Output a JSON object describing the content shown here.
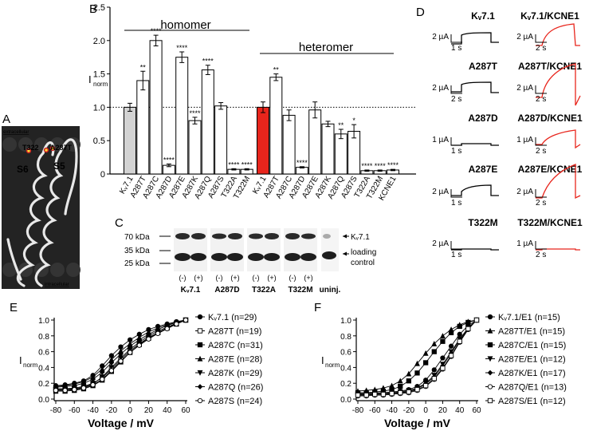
{
  "panel_letters": {
    "a": "A",
    "b": "B",
    "c": "C",
    "d": "D",
    "e": "E",
    "f": "F"
  },
  "colors": {
    "red": "#e8251c",
    "gray": "#999999",
    "light_gray": "#d3d3d3"
  },
  "panel_a": {
    "top_label": "extracellular",
    "bottom_label": "intracellular",
    "mutants": [
      "T322",
      "A287T"
    ],
    "segments": [
      "S6",
      "S5"
    ]
  },
  "panel_c": {
    "mw": [
      "70 kDa",
      "35 kDa",
      "25 kDa"
    ],
    "right_labels": {
      "kv": "Kᵥ7.1",
      "loading1": "loading",
      "loading2": "control"
    },
    "lane_signs": [
      "(-)",
      "(+)",
      "(-)",
      "(+)",
      "(-)",
      "(+)",
      "(-)",
      "(+)"
    ],
    "groups": [
      "Kᵥ7.1",
      "A287D",
      "T322A",
      "T322M",
      "uninj."
    ]
  },
  "panel_d": {
    "left_titles": [
      "Kᵥ7.1",
      "A287T",
      "A287D",
      "A287E",
      "T322M"
    ],
    "right_titles": [
      "Kᵥ7.1/KCNE1",
      "A287T/KCNE1",
      "A287D/KCNE1",
      "A287E/KCNE1",
      "T322M/KCNE1"
    ],
    "left_scales": [
      {
        "i": "2 µA",
        "t": "1 s"
      },
      {
        "i": "2 µA",
        "t": "2 s"
      },
      {
        "i": "1 µA",
        "t": "1 s"
      },
      {
        "i": "2 µA",
        "t": "1 s"
      },
      {
        "i": "2 µA",
        "t": "1 s"
      }
    ],
    "right_scales": [
      {
        "i": "2 µA",
        "t": "2 s"
      },
      {
        "i": "2 µA",
        "t": "2 s"
      },
      {
        "i": "1 µA",
        "t": "2 s"
      },
      {
        "i": "2 µA",
        "t": "2 s"
      },
      {
        "i": "1 µA",
        "t": "2 s"
      }
    ]
  },
  "chart_data": [
    {
      "id": "B",
      "type": "bar",
      "title_homomer": "homomer",
      "title_heteromer": "heteromer",
      "ylabel": "Inorm",
      "ylabel_main": "I",
      "ylabel_sub": "norm",
      "ylim": [
        0,
        2.5
      ],
      "yticks": [
        "0",
        "0.5",
        "1.0",
        "1.5",
        "2.0",
        "2.5"
      ],
      "reference_line": 1.0,
      "homomer": {
        "categories": [
          "Kᵥ7.1",
          "A287T",
          "A287C",
          "A287D",
          "A287E",
          "A287K",
          "A287Q",
          "A287S",
          "T322A",
          "T322M"
        ],
        "values": [
          1.0,
          1.4,
          2.0,
          0.13,
          1.75,
          0.8,
          1.56,
          1.02,
          0.07,
          0.07
        ],
        "errors": [
          0.06,
          0.14,
          0.08,
          0.02,
          0.08,
          0.05,
          0.07,
          0.05,
          0.01,
          0.01
        ],
        "significance": [
          "",
          "**",
          "****",
          "****",
          "****",
          "****",
          "****",
          "",
          "****",
          "****"
        ]
      },
      "heteromer": {
        "categories": [
          "Kᵥ7.1",
          "A287T",
          "A287C",
          "A287D",
          "A287E",
          "A287K",
          "A287Q",
          "A287S",
          "T322A",
          "T322M",
          "KCNE1"
        ],
        "values": [
          1.0,
          1.45,
          0.88,
          0.1,
          0.96,
          0.75,
          0.6,
          0.64,
          0.05,
          0.05,
          0.06
        ],
        "errors": [
          0.08,
          0.05,
          0.08,
          0.01,
          0.12,
          0.04,
          0.07,
          0.1,
          0.01,
          0.01,
          0.01
        ],
        "significance": [
          "",
          "**",
          "",
          "****",
          "",
          "",
          "**",
          "*",
          "****",
          "****",
          "****"
        ]
      }
    },
    {
      "id": "E",
      "type": "line",
      "xlabel": "Voltage / mV",
      "ylabel": "Inorm",
      "ylabel_main": "I",
      "ylabel_sub": "norm",
      "xlim": [
        -80,
        60
      ],
      "ylim": [
        0,
        1.0
      ],
      "xticks": [
        "-80",
        "-60",
        "-40",
        "-20",
        "0",
        "20",
        "40",
        "60"
      ],
      "yticks": [
        "0.0",
        "0.2",
        "0.4",
        "0.6",
        "0.8",
        "1.0"
      ],
      "x": [
        -80,
        -70,
        -60,
        -50,
        -40,
        -30,
        -20,
        -10,
        0,
        10,
        20,
        30,
        40,
        50,
        60
      ],
      "series": [
        {
          "name": "Kᵥ7.1 (n=29)",
          "marker": "circle-filled",
          "values": [
            0.17,
            0.18,
            0.2,
            0.23,
            0.3,
            0.42,
            0.55,
            0.66,
            0.75,
            0.82,
            0.88,
            0.92,
            0.95,
            0.98,
            1.0
          ]
        },
        {
          "name": "A287T (n=19)",
          "marker": "square-open",
          "values": [
            0.13,
            0.13,
            0.14,
            0.16,
            0.2,
            0.27,
            0.38,
            0.5,
            0.61,
            0.7,
            0.78,
            0.84,
            0.9,
            0.95,
            1.0
          ]
        },
        {
          "name": "A287C (n=31)",
          "marker": "square-filled",
          "values": [
            0.1,
            0.1,
            0.11,
            0.13,
            0.17,
            0.24,
            0.35,
            0.47,
            0.59,
            0.69,
            0.77,
            0.84,
            0.9,
            0.95,
            1.0
          ]
        },
        {
          "name": "A287E (n=28)",
          "marker": "triangle-filled",
          "values": [
            0.16,
            0.17,
            0.19,
            0.22,
            0.28,
            0.38,
            0.5,
            0.61,
            0.7,
            0.78,
            0.85,
            0.9,
            0.94,
            0.97,
            1.0
          ]
        },
        {
          "name": "A287K (n=29)",
          "marker": "triangle-down-filled",
          "values": [
            0.12,
            0.12,
            0.13,
            0.15,
            0.19,
            0.28,
            0.4,
            0.52,
            0.63,
            0.72,
            0.8,
            0.86,
            0.91,
            0.96,
            1.0
          ]
        },
        {
          "name": "A287Q (n=26)",
          "marker": "diamond-filled",
          "values": [
            0.15,
            0.16,
            0.17,
            0.2,
            0.25,
            0.34,
            0.46,
            0.57,
            0.67,
            0.75,
            0.82,
            0.88,
            0.93,
            0.97,
            1.0
          ]
        },
        {
          "name": "A287S (n=24)",
          "marker": "circle-open",
          "values": [
            0.11,
            0.11,
            0.12,
            0.14,
            0.18,
            0.25,
            0.36,
            0.48,
            0.59,
            0.68,
            0.76,
            0.83,
            0.89,
            0.95,
            1.0
          ]
        }
      ]
    },
    {
      "id": "F",
      "type": "line",
      "xlabel": "Voltage / mV",
      "ylabel": "Inorm",
      "ylabel_main": "I",
      "ylabel_sub": "norm",
      "xlim": [
        -80,
        60
      ],
      "ylim": [
        0,
        1.0
      ],
      "xticks": [
        "-80",
        "-60",
        "-40",
        "-20",
        "0",
        "20",
        "40",
        "60"
      ],
      "yticks": [
        "0.0",
        "0.2",
        "0.4",
        "0.6",
        "0.8",
        "1.0"
      ],
      "x": [
        -80,
        -70,
        -60,
        -50,
        -40,
        -30,
        -20,
        -10,
        0,
        10,
        20,
        30,
        40,
        50,
        60
      ],
      "series": [
        {
          "name": "Kᵥ7.1/E1 (n=15)",
          "marker": "circle-filled",
          "values": [
            0.07,
            0.07,
            0.08,
            0.08,
            0.09,
            0.1,
            0.12,
            0.16,
            0.24,
            0.37,
            0.52,
            0.67,
            0.82,
            0.93,
            1.0
          ]
        },
        {
          "name": "A287T/E1 (n=15)",
          "marker": "triangle-filled",
          "values": [
            0.1,
            0.11,
            0.12,
            0.14,
            0.17,
            0.23,
            0.32,
            0.45,
            0.58,
            0.7,
            0.8,
            0.88,
            0.94,
            0.98,
            1.0
          ]
        },
        {
          "name": "A287C/E1 (n=15)",
          "marker": "square-filled",
          "values": [
            0.08,
            0.08,
            0.09,
            0.1,
            0.12,
            0.16,
            0.23,
            0.33,
            0.46,
            0.6,
            0.73,
            0.84,
            0.92,
            0.97,
            1.0
          ]
        },
        {
          "name": "A287E/E1 (n=12)",
          "marker": "triangle-down-filled",
          "values": [
            0.06,
            0.06,
            0.07,
            0.07,
            0.08,
            0.09,
            0.11,
            0.14,
            0.2,
            0.3,
            0.44,
            0.6,
            0.76,
            0.9,
            1.0
          ]
        },
        {
          "name": "A287K/E1 (n=17)",
          "marker": "diamond-filled",
          "values": [
            0.05,
            0.05,
            0.06,
            0.06,
            0.07,
            0.08,
            0.1,
            0.13,
            0.19,
            0.28,
            0.42,
            0.58,
            0.75,
            0.9,
            1.0
          ]
        },
        {
          "name": "A287Q/E1 (n=13)",
          "marker": "circle-open",
          "values": [
            0.04,
            0.04,
            0.05,
            0.05,
            0.06,
            0.07,
            0.08,
            0.11,
            0.16,
            0.25,
            0.38,
            0.54,
            0.72,
            0.88,
            1.0
          ]
        },
        {
          "name": "A287S/E1 (n=12)",
          "marker": "square-open",
          "values": [
            0.05,
            0.05,
            0.06,
            0.06,
            0.07,
            0.08,
            0.09,
            0.12,
            0.17,
            0.26,
            0.39,
            0.55,
            0.73,
            0.89,
            1.0
          ]
        }
      ]
    }
  ]
}
